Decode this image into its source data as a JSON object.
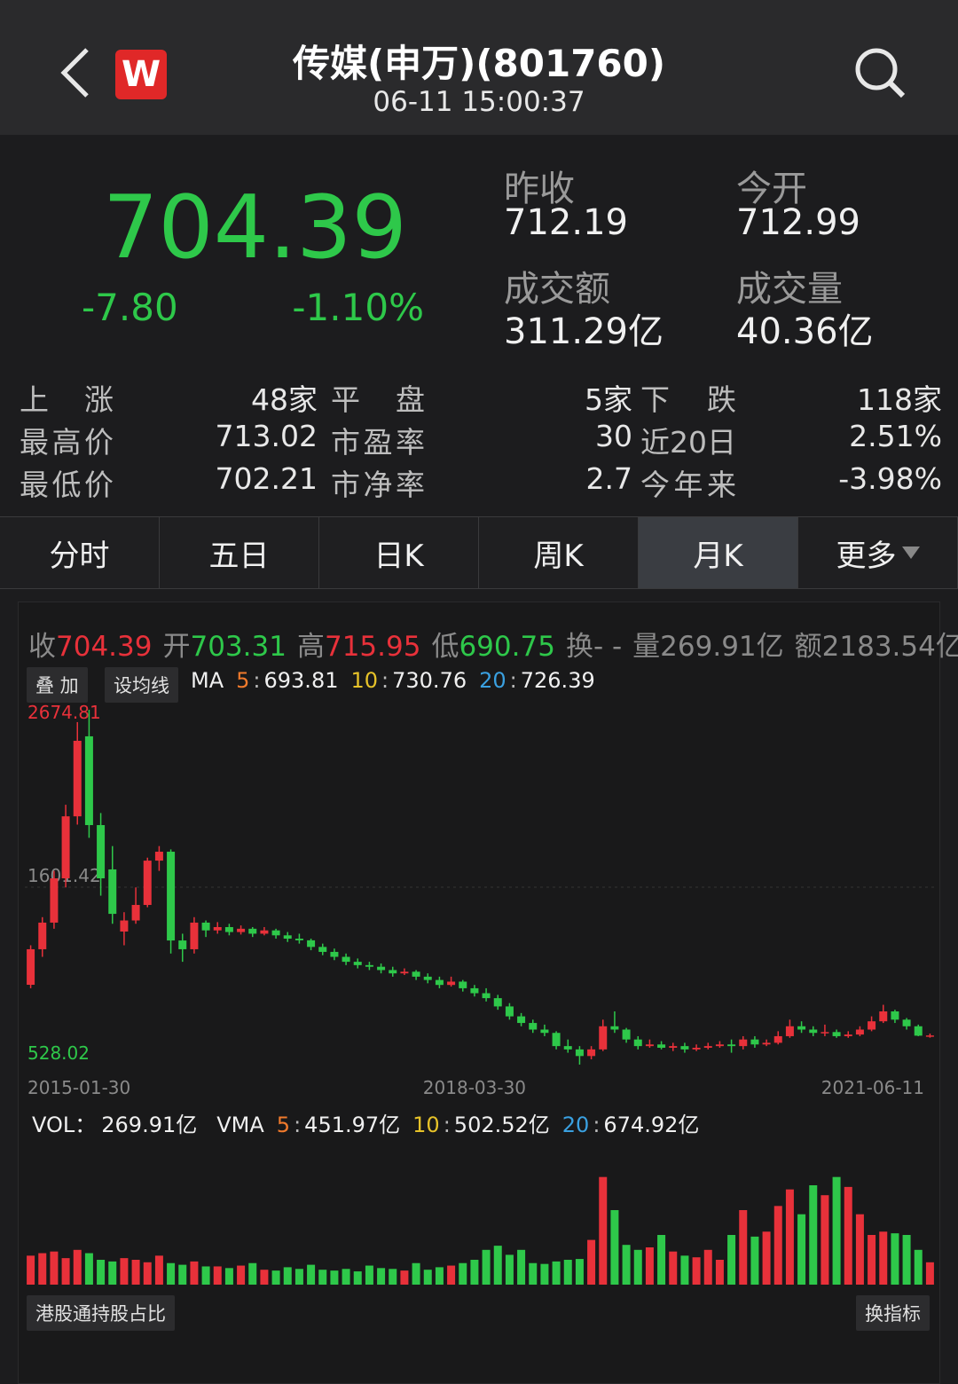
{
  "header": {
    "logo": "W",
    "title": "传媒(申万)(801760)",
    "time": "06-11 15:00:37"
  },
  "quote": {
    "price": "704.39",
    "change": "-7.80",
    "change_pct": "-1.10%",
    "stats": [
      {
        "label": "昨收",
        "value": "712.19"
      },
      {
        "label": "今开",
        "value": "712.99"
      },
      {
        "label": "成交额",
        "value": "311.29亿"
      },
      {
        "label": "成交量",
        "value": "40.36亿"
      }
    ]
  },
  "breadth": [
    [
      "上 涨",
      "48家",
      "平 盘",
      "5家",
      "下 跌",
      "118家"
    ],
    [
      "最高价",
      "713.02",
      "市盈率",
      "30",
      "近20日",
      "2.51%"
    ],
    [
      "最低价",
      "702.21",
      "市净率",
      "2.7",
      "今年来",
      "-3.98%"
    ]
  ],
  "tabs": {
    "items": [
      "分时",
      "五日",
      "日K",
      "周K",
      "月K",
      "更多"
    ],
    "active": 4
  },
  "chart_info": [
    {
      "label": "收",
      "value": "704.39",
      "color": "#e8313a"
    },
    {
      "label": "开",
      "value": "703.31",
      "color": "#2ec84a"
    },
    {
      "label": "高",
      "value": "715.95",
      "color": "#e8313a"
    },
    {
      "label": "低",
      "value": "690.75",
      "color": "#2ec84a"
    },
    {
      "label": "换",
      "value": "- -",
      "color": "#8a8a8a"
    },
    {
      "label": "量",
      "value": "269.91亿",
      "color": "#8a8a8a"
    },
    {
      "label": "额",
      "value": "2183.54亿",
      "color": "#8a8a8a"
    }
  ],
  "indicators": {
    "separator": ":",
    "buttons": [
      "叠 加",
      "设均线"
    ],
    "ma": {
      "label": "MA",
      "items": [
        {
          "period": "5",
          "value": "693.81",
          "color": "#f07a2c"
        },
        {
          "period": "10",
          "value": "730.76",
          "color": "#e6c229"
        },
        {
          "period": "20",
          "value": "726.39",
          "color": "#3aa0e0"
        }
      ]
    },
    "vol": {
      "label": "VOL：",
      "value": "269.91亿",
      "ma_label": "VMA",
      "items": [
        {
          "period": "5",
          "value": "451.97亿",
          "color": "#f07a2c"
        },
        {
          "period": "10",
          "value": "502.52亿",
          "color": "#e6c229"
        },
        {
          "period": "20",
          "value": "674.92亿",
          "color": "#3aa0e0"
        }
      ]
    },
    "bottom_buttons": [
      "港股通持股占比",
      "换指标"
    ]
  },
  "chart_data": [
    {
      "type": "candlestick",
      "up_color": "#e8313a",
      "down_color": "#2ec84a",
      "grid": true,
      "categories": [
        "2015-01-30",
        null,
        null,
        null,
        null,
        null,
        null,
        null,
        null,
        null,
        null,
        null,
        null,
        null,
        null,
        null,
        null,
        null,
        null,
        null,
        null,
        null,
        null,
        null,
        null,
        null,
        null,
        null,
        null,
        null,
        null,
        null,
        null,
        null,
        null,
        null,
        null,
        null,
        "2018-03-30",
        null,
        null,
        null,
        null,
        null,
        null,
        null,
        null,
        null,
        null,
        null,
        null,
        null,
        null,
        null,
        null,
        null,
        null,
        null,
        null,
        null,
        null,
        null,
        null,
        null,
        null,
        null,
        null,
        null,
        null,
        null,
        null,
        null,
        null,
        null,
        null,
        null,
        null,
        "2021-06-11"
      ],
      "open": [
        1011,
        1226,
        1387,
        1655,
        2030,
        2514,
        1977,
        1709,
        1333,
        1400,
        1494,
        1762,
        1816,
        1279,
        1226,
        1387,
        1340,
        1360,
        1330,
        1350,
        1320,
        1340,
        1310,
        1290,
        1280,
        1240,
        1210,
        1180,
        1150,
        1130,
        1120,
        1100,
        1080,
        1090,
        1060,
        1040,
        1010,
        1030,
        990,
        960,
        930,
        880,
        820,
        780,
        740,
        720,
        640,
        620,
        580,
        620,
        760,
        740,
        680,
        640,
        650,
        630,
        640,
        620,
        630,
        640,
        650,
        640,
        680,
        650,
        660,
        700,
        760,
        740,
        720,
        725,
        700,
        710,
        740,
        790,
        850,
        800,
        760,
        703.31
      ],
      "high": [
        1250,
        1420,
        1700,
        2100,
        2600,
        2674.81,
        2050,
        1850,
        1450,
        1600,
        1780,
        1850,
        1830,
        1320,
        1420,
        1400,
        1390,
        1380,
        1370,
        1360,
        1360,
        1350,
        1330,
        1320,
        1290,
        1260,
        1230,
        1200,
        1170,
        1150,
        1140,
        1120,
        1110,
        1100,
        1080,
        1060,
        1060,
        1040,
        1010,
        990,
        950,
        900,
        840,
        800,
        770,
        730,
        680,
        640,
        640,
        800,
        850,
        750,
        700,
        680,
        670,
        660,
        660,
        650,
        660,
        670,
        680,
        700,
        700,
        680,
        730,
        800,
        790,
        760,
        770,
        740,
        730,
        760,
        820,
        890,
        860,
        810,
        770,
        715.95
      ],
      "low": [
        990,
        1180,
        1350,
        1600,
        1980,
        1900,
        1550,
        1380,
        1250,
        1380,
        1480,
        1700,
        1200,
        1150,
        1200,
        1300,
        1320,
        1310,
        1315,
        1300,
        1310,
        1290,
        1270,
        1260,
        1220,
        1190,
        1160,
        1130,
        1110,
        1100,
        1080,
        1060,
        1070,
        1040,
        1020,
        990,
        1000,
        970,
        940,
        910,
        860,
        800,
        760,
        720,
        700,
        620,
        600,
        528.02,
        560,
        610,
        720,
        660,
        620,
        630,
        620,
        610,
        600,
        610,
        620,
        630,
        600,
        620,
        630,
        640,
        650,
        690,
        720,
        700,
        700,
        690,
        690,
        700,
        730,
        780,
        780,
        740,
        700,
        690.75
      ],
      "close": [
        1226,
        1387,
        1655,
        2030,
        2487,
        1977,
        1655,
        1440,
        1400,
        1494,
        1762,
        1816,
        1279,
        1226,
        1387,
        1340,
        1360,
        1330,
        1350,
        1320,
        1340,
        1310,
        1290,
        1280,
        1240,
        1210,
        1180,
        1150,
        1130,
        1120,
        1100,
        1080,
        1090,
        1060,
        1040,
        1010,
        1030,
        990,
        960,
        930,
        880,
        820,
        780,
        740,
        720,
        640,
        620,
        580,
        620,
        760,
        740,
        680,
        640,
        650,
        630,
        640,
        620,
        630,
        640,
        650,
        640,
        680,
        650,
        660,
        700,
        760,
        740,
        720,
        725,
        700,
        710,
        740,
        790,
        850,
        800,
        760,
        703,
        704.39
      ],
      "ylim": [
        528.02,
        2674.81
      ],
      "yticks": [
        528.02,
        1601.42,
        2674.81
      ]
    },
    {
      "type": "bar",
      "values": [
        350,
        380,
        400,
        320,
        420,
        380,
        300,
        280,
        320,
        300,
        270,
        350,
        260,
        240,
        280,
        220,
        220,
        200,
        230,
        260,
        180,
        170,
        210,
        190,
        240,
        180,
        170,
        190,
        160,
        230,
        200,
        190,
        170,
        260,
        180,
        210,
        230,
        260,
        300,
        420,
        470,
        360,
        420,
        260,
        250,
        280,
        300,
        310,
        540,
        1300,
        900,
        480,
        420,
        450,
        600,
        400,
        350,
        330,
        420,
        300,
        600,
        900,
        580,
        640,
        950,
        1150,
        850,
        1200,
        1080,
        1300,
        1180,
        850,
        600,
        640,
        620,
        600,
        420,
        269.91
      ],
      "ylim": [
        0,
        1500
      ]
    }
  ]
}
